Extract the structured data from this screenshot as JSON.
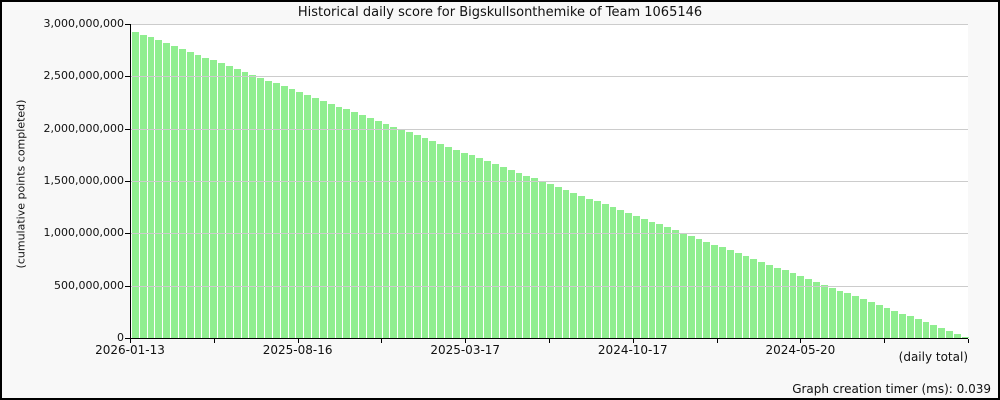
{
  "chart_data": {
    "type": "bar",
    "title": "Historical daily score for Bigskullsonthemike of Team 1065146",
    "ylabel": "(cumulative points completed)",
    "x_axis_note": "(daily total)",
    "ylim": [
      0,
      3000000000
    ],
    "grid": "horizontal",
    "legend_position": "none",
    "x_direction": "newest date on left, oldest on right",
    "bar_color": "#90ee90",
    "grid_color": "#cccccc",
    "y_ticks": [
      {
        "value": 3000000000,
        "label": "3,000,000,000"
      },
      {
        "value": 2500000000,
        "label": "2,500,000,000"
      },
      {
        "value": 2000000000,
        "label": "2,000,000,000"
      },
      {
        "value": 1500000000,
        "label": "1,500,000,000"
      },
      {
        "value": 1000000000,
        "label": "1,000,000,000"
      },
      {
        "value": 500000000,
        "label": "500,000,000"
      },
      {
        "value": 0,
        "label": "0"
      }
    ],
    "x_ticks": [
      {
        "label": "2026-01-13"
      },
      {
        "label": ""
      },
      {
        "label": "2025-08-16"
      },
      {
        "label": ""
      },
      {
        "label": "2025-03-17"
      },
      {
        "label": ""
      },
      {
        "label": "2024-10-17"
      },
      {
        "label": ""
      },
      {
        "label": "2024-05-20"
      },
      {
        "label": ""
      },
      {
        "label": ""
      }
    ],
    "series": [
      {
        "name": "cumulative points completed",
        "shape": "linear_decline",
        "start_value": 2940000000,
        "end_value": 0,
        "bar_count": 107,
        "note": "weekly blocks of daily bars declining steadily from ~2.94B at 2026-01-13 side to 0 at right edge"
      }
    ]
  },
  "footer": {
    "timer_text": "Graph creation timer (ms): 0.039"
  }
}
